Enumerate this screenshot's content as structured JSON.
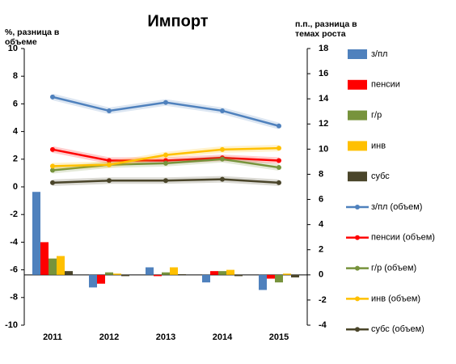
{
  "chart_data": {
    "type": "combo",
    "title": "Импорт",
    "y_label": "%, разница в объеме",
    "y2_label": "п.п., разница в темах роста",
    "categories": [
      "2011",
      "2012",
      "2013",
      "2014",
      "2015"
    ],
    "ylim": [
      -10,
      10
    ],
    "yticks": [
      -10,
      -8,
      -6,
      -4,
      -2,
      0,
      2,
      4,
      6,
      8,
      10
    ],
    "y2lim": [
      -4,
      18
    ],
    "y2ticks": [
      -4,
      -2,
      0,
      2,
      4,
      6,
      8,
      10,
      12,
      14,
      16,
      18
    ],
    "series": [
      {
        "name": "з/пл",
        "type": "bar",
        "axis": "y2",
        "color": "#4f81bd",
        "values": [
          6.6,
          -1.0,
          0.6,
          -0.6,
          -1.2
        ]
      },
      {
        "name": "пенсии",
        "type": "bar",
        "axis": "y2",
        "color": "#ff0000",
        "values": [
          2.6,
          -0.7,
          -0.1,
          0.3,
          -0.3
        ]
      },
      {
        "name": "г/р",
        "type": "bar",
        "axis": "y2",
        "color": "#77933c",
        "values": [
          1.3,
          0.2,
          0.2,
          0.3,
          -0.6
        ]
      },
      {
        "name": "инв",
        "type": "bar",
        "axis": "y2",
        "color": "#ffc000",
        "values": [
          1.5,
          0.1,
          0.6,
          0.4,
          0.1
        ]
      },
      {
        "name": "субс",
        "type": "bar",
        "axis": "y2",
        "color": "#4a452a",
        "values": [
          0.3,
          -0.1,
          0.05,
          -0.1,
          -0.2
        ]
      },
      {
        "name": "з/пл (объем)",
        "type": "line",
        "color": "#4f81bd",
        "values": [
          6.5,
          5.5,
          6.1,
          5.5,
          4.4
        ]
      },
      {
        "name": "пенсии (объем)",
        "type": "line",
        "color": "#ff0000",
        "values": [
          2.7,
          1.9,
          1.9,
          2.1,
          1.9
        ]
      },
      {
        "name": "г/р (объем)",
        "type": "line",
        "color": "#77933c",
        "values": [
          1.2,
          1.6,
          1.7,
          2.0,
          1.4
        ]
      },
      {
        "name": "инв (объем)",
        "type": "line",
        "color": "#ffc000",
        "values": [
          1.5,
          1.6,
          2.3,
          2.7,
          2.8
        ]
      },
      {
        "name": "субс (объем)",
        "type": "line",
        "color": "#4a452a",
        "values": [
          0.3,
          0.45,
          0.45,
          0.55,
          0.3
        ]
      }
    ]
  }
}
